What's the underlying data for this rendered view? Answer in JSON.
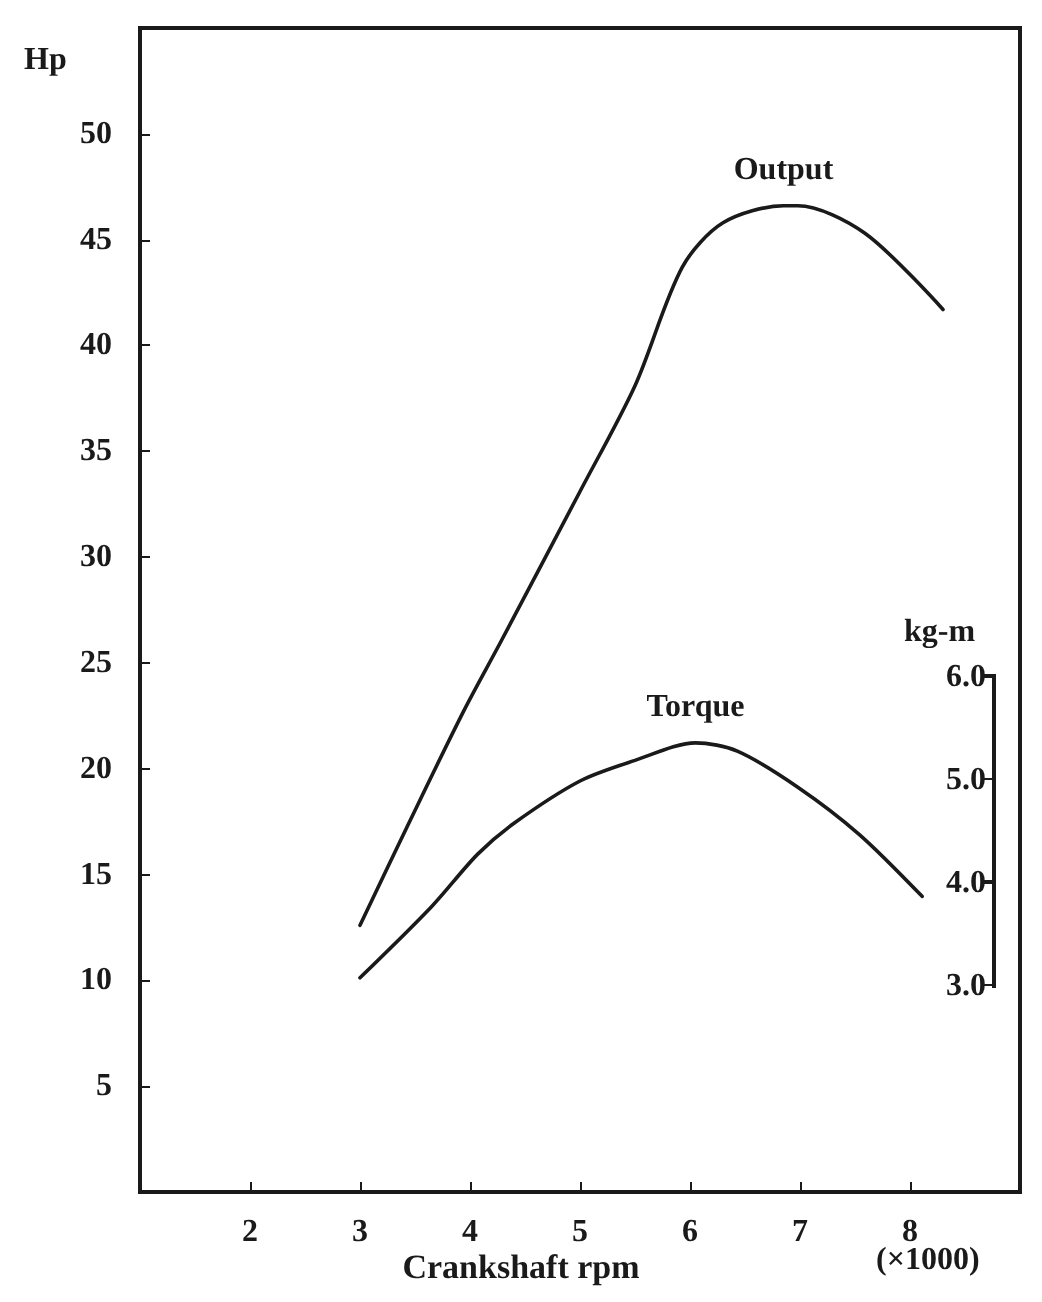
{
  "chart_data": {
    "type": "line",
    "xlabel": "Crankshaft rpm",
    "ylabel": "Hp",
    "y2label": "kg-m",
    "annotations": [
      "(×1000)"
    ],
    "xlim": [
      1,
      9
    ],
    "xticks": [
      2,
      3,
      4,
      5,
      6,
      7,
      8
    ],
    "ylim": [
      0,
      55
    ],
    "yticks": [
      5,
      10,
      15,
      20,
      25,
      30,
      35,
      40,
      45,
      50
    ],
    "y2lim": [
      1,
      12.3
    ],
    "y2ticks": [
      {
        "value": 3,
        "label": "3.0"
      },
      {
        "value": 4,
        "label": "4.0"
      },
      {
        "value": 5,
        "label": "5.0"
      },
      {
        "value": 6,
        "label": "6.0"
      }
    ],
    "grid": false,
    "legend": false,
    "marker": "none",
    "line_style": "solid",
    "series": [
      {
        "name": "Output",
        "color": "#1a1a1a",
        "x": [
          3.0,
          3.46,
          3.94,
          4.28,
          5.0,
          5.5,
          5.93,
          6.3,
          6.85,
          6.98,
          7.59,
          8.3
        ],
        "values": [
          12.6,
          17.6,
          22.7,
          26.0,
          33.1,
          38.1,
          43.7,
          45.8,
          46.6,
          46.6,
          45.3,
          41.7
        ]
      },
      {
        "name": "Torque",
        "color": "#1a1a1a",
        "axis": "y2",
        "x": [
          3.0,
          3.65,
          4.07,
          4.4,
          5.0,
          5.5,
          6.05,
          6.43,
          6.98,
          7.54,
          8.11
        ],
        "values": [
          3.08,
          3.77,
          4.28,
          4.58,
          4.99,
          5.19,
          5.36,
          5.28,
          4.93,
          4.47,
          3.87
        ]
      }
    ]
  }
}
